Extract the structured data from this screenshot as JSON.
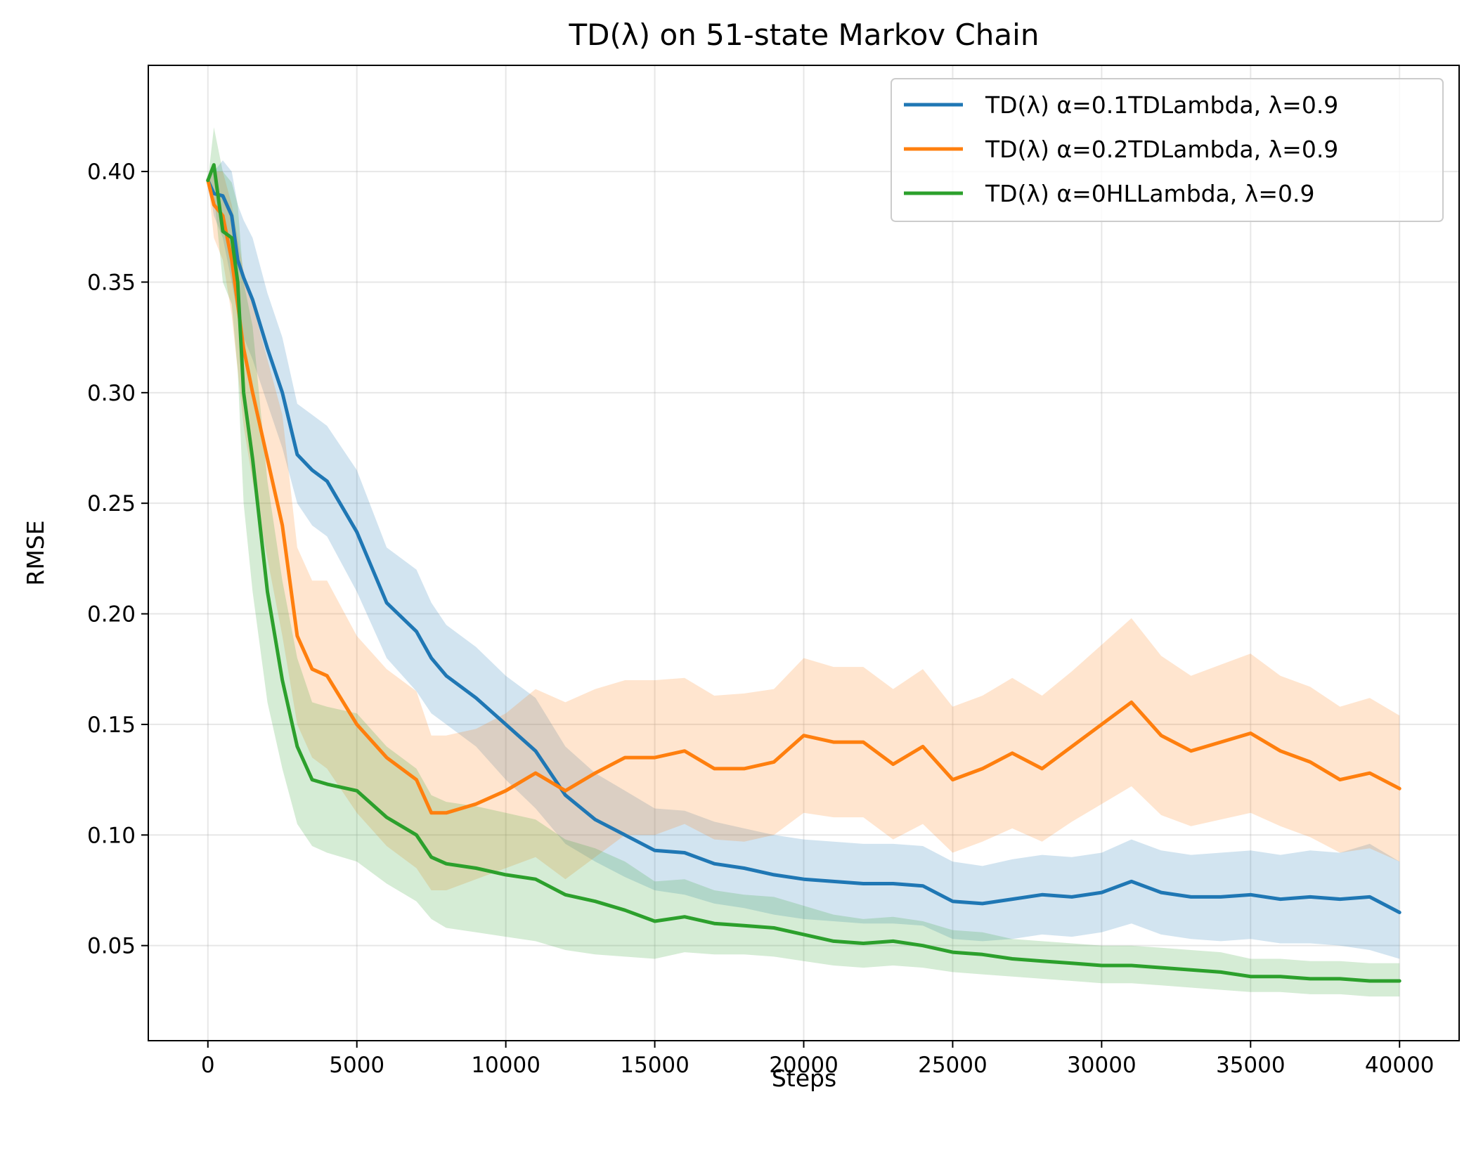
{
  "chart_data": {
    "type": "line",
    "title": "TD(λ) on 51-state Markov Chain",
    "xlabel": "Steps",
    "ylabel": "RMSE",
    "xlim": [
      -2000,
      42000
    ],
    "ylim": [
      0.007,
      0.448
    ],
    "xticks": [
      0,
      5000,
      10000,
      15000,
      20000,
      25000,
      30000,
      35000,
      40000
    ],
    "xtick_labels": [
      "0",
      "5000",
      "10000",
      "15000",
      "20000",
      "25000",
      "30000",
      "35000",
      "40000"
    ],
    "yticks": [
      0.05,
      0.1,
      0.15,
      0.2,
      0.25,
      0.3,
      0.35,
      0.4
    ],
    "ytick_labels": [
      "0.05",
      "0.10",
      "0.15",
      "0.20",
      "0.25",
      "0.30",
      "0.35",
      "0.40"
    ],
    "grid": true,
    "legend_position": "top-right",
    "x": [
      0,
      200,
      500,
      800,
      1000,
      1200,
      1500,
      2000,
      2500,
      3000,
      3500,
      4000,
      5000,
      6000,
      7000,
      7500,
      8000,
      9000,
      10000,
      11000,
      12000,
      13000,
      14000,
      15000,
      16000,
      17000,
      18000,
      19000,
      20000,
      21000,
      22000,
      23000,
      24000,
      25000,
      26000,
      27000,
      28000,
      29000,
      30000,
      31000,
      32000,
      33000,
      34000,
      35000,
      36000,
      37000,
      38000,
      39000,
      40000
    ],
    "series": [
      {
        "name": "TD(λ) α=0.1TDLambda, λ=0.9",
        "color": "#1f77b4",
        "values": [
          0.396,
          0.39,
          0.389,
          0.38,
          0.36,
          0.352,
          0.342,
          0.32,
          0.3,
          0.272,
          0.265,
          0.26,
          0.237,
          0.205,
          0.192,
          0.18,
          0.172,
          0.162,
          0.15,
          0.138,
          0.118,
          0.107,
          0.1,
          0.093,
          0.092,
          0.087,
          0.085,
          0.082,
          0.08,
          0.079,
          0.078,
          0.078,
          0.077,
          0.07,
          0.069,
          0.071,
          0.073,
          0.072,
          0.074,
          0.079,
          0.074,
          0.072,
          0.072,
          0.073,
          0.071,
          0.072,
          0.071,
          0.072,
          0.065
        ],
        "lower": [
          0.396,
          0.38,
          0.37,
          0.35,
          0.335,
          0.325,
          0.315,
          0.295,
          0.275,
          0.25,
          0.24,
          0.235,
          0.21,
          0.18,
          0.165,
          0.155,
          0.15,
          0.14,
          0.125,
          0.112,
          0.096,
          0.088,
          0.081,
          0.075,
          0.073,
          0.069,
          0.067,
          0.064,
          0.062,
          0.061,
          0.06,
          0.06,
          0.059,
          0.053,
          0.052,
          0.053,
          0.055,
          0.054,
          0.056,
          0.06,
          0.055,
          0.053,
          0.052,
          0.053,
          0.051,
          0.051,
          0.05,
          0.048,
          0.044
        ],
        "upper": [
          0.396,
          0.4,
          0.405,
          0.4,
          0.385,
          0.378,
          0.37,
          0.345,
          0.325,
          0.295,
          0.29,
          0.285,
          0.265,
          0.23,
          0.22,
          0.205,
          0.195,
          0.185,
          0.172,
          0.162,
          0.14,
          0.128,
          0.12,
          0.112,
          0.111,
          0.106,
          0.103,
          0.1,
          0.098,
          0.097,
          0.096,
          0.096,
          0.095,
          0.088,
          0.086,
          0.089,
          0.091,
          0.09,
          0.092,
          0.098,
          0.093,
          0.091,
          0.092,
          0.093,
          0.091,
          0.093,
          0.092,
          0.096,
          0.088
        ]
      },
      {
        "name": "TD(λ) α=0.2TDLambda, λ=0.9",
        "color": "#ff7f0e",
        "values": [
          0.396,
          0.385,
          0.38,
          0.36,
          0.34,
          0.32,
          0.3,
          0.27,
          0.24,
          0.19,
          0.175,
          0.172,
          0.15,
          0.135,
          0.125,
          0.11,
          0.11,
          0.114,
          0.12,
          0.128,
          0.12,
          0.128,
          0.135,
          0.135,
          0.138,
          0.13,
          0.13,
          0.133,
          0.145,
          0.142,
          0.142,
          0.132,
          0.14,
          0.125,
          0.13,
          0.137,
          0.13,
          0.14,
          0.15,
          0.16,
          0.145,
          0.138,
          0.142,
          0.146,
          0.138,
          0.133,
          0.125,
          0.128,
          0.121
        ],
        "lower": [
          0.396,
          0.37,
          0.36,
          0.335,
          0.31,
          0.285,
          0.26,
          0.225,
          0.19,
          0.15,
          0.135,
          0.13,
          0.11,
          0.095,
          0.085,
          0.075,
          0.075,
          0.08,
          0.085,
          0.09,
          0.08,
          0.09,
          0.1,
          0.1,
          0.105,
          0.098,
          0.097,
          0.1,
          0.11,
          0.108,
          0.108,
          0.098,
          0.105,
          0.092,
          0.097,
          0.103,
          0.097,
          0.106,
          0.114,
          0.122,
          0.109,
          0.104,
          0.107,
          0.11,
          0.104,
          0.099,
          0.092,
          0.094,
          0.088
        ],
        "upper": [
          0.396,
          0.4,
          0.4,
          0.385,
          0.37,
          0.355,
          0.34,
          0.315,
          0.29,
          0.23,
          0.215,
          0.215,
          0.19,
          0.175,
          0.165,
          0.145,
          0.145,
          0.148,
          0.155,
          0.166,
          0.16,
          0.166,
          0.17,
          0.17,
          0.171,
          0.163,
          0.164,
          0.166,
          0.18,
          0.176,
          0.176,
          0.166,
          0.175,
          0.158,
          0.163,
          0.171,
          0.163,
          0.174,
          0.186,
          0.198,
          0.181,
          0.172,
          0.177,
          0.182,
          0.172,
          0.167,
          0.158,
          0.162,
          0.154
        ]
      },
      {
        "name": "TD(λ) α=0HLLambda, λ=0.9",
        "color": "#2ca02c",
        "values": [
          0.396,
          0.403,
          0.373,
          0.37,
          0.35,
          0.3,
          0.27,
          0.21,
          0.17,
          0.14,
          0.125,
          0.123,
          0.12,
          0.108,
          0.1,
          0.09,
          0.087,
          0.085,
          0.082,
          0.08,
          0.073,
          0.07,
          0.066,
          0.061,
          0.063,
          0.06,
          0.059,
          0.058,
          0.055,
          0.052,
          0.051,
          0.052,
          0.05,
          0.047,
          0.046,
          0.044,
          0.043,
          0.042,
          0.041,
          0.041,
          0.04,
          0.039,
          0.038,
          0.036,
          0.036,
          0.035,
          0.035,
          0.034,
          0.034
        ],
        "lower": [
          0.396,
          0.39,
          0.35,
          0.34,
          0.31,
          0.25,
          0.21,
          0.16,
          0.13,
          0.105,
          0.095,
          0.092,
          0.088,
          0.078,
          0.07,
          0.062,
          0.058,
          0.056,
          0.054,
          0.052,
          0.048,
          0.046,
          0.045,
          0.044,
          0.047,
          0.046,
          0.046,
          0.045,
          0.043,
          0.041,
          0.04,
          0.041,
          0.04,
          0.038,
          0.037,
          0.036,
          0.035,
          0.034,
          0.033,
          0.033,
          0.032,
          0.031,
          0.03,
          0.029,
          0.029,
          0.028,
          0.028,
          0.027,
          0.027
        ],
        "upper": [
          0.396,
          0.42,
          0.4,
          0.395,
          0.385,
          0.35,
          0.33,
          0.26,
          0.215,
          0.18,
          0.16,
          0.158,
          0.155,
          0.14,
          0.13,
          0.118,
          0.115,
          0.113,
          0.11,
          0.107,
          0.098,
          0.094,
          0.088,
          0.079,
          0.08,
          0.075,
          0.073,
          0.072,
          0.068,
          0.064,
          0.062,
          0.063,
          0.061,
          0.057,
          0.056,
          0.053,
          0.052,
          0.051,
          0.05,
          0.05,
          0.049,
          0.048,
          0.047,
          0.044,
          0.044,
          0.043,
          0.043,
          0.042,
          0.042
        ]
      }
    ]
  }
}
